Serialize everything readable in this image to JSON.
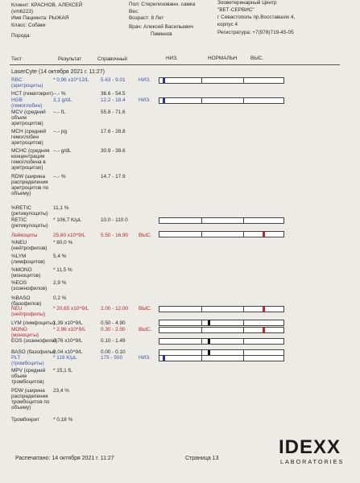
{
  "header": {
    "client": "Клиент: КРАСНОВ, АЛЕКСЕЙ",
    "client_id": "(vm6223)",
    "patient_name": "Имя Пациента: РЫЖАЯ",
    "class": "Класс: Собаки",
    "breed": "Порода:",
    "sex": "Пол: Стерилизованн. самка",
    "weight": "Вес:",
    "age": "Возраст: 8 Лет",
    "doctor_line1": "Врач: Алексей Васильевич",
    "doctor_line2": "Пименов",
    "clinic_line1": "Зооветеринарный Центр",
    "clinic_line2": "\"ВЕТ-СЕРВИС\"",
    "clinic_line3": "г Севастополь пр.Восставших 4,",
    "clinic_line4": "корпус 4",
    "clinic_line5": "Регистратура: +7(978)719-45-05"
  },
  "columns": {
    "test": "Тест",
    "result": "Результат",
    "reference": "Справочный",
    "low": "НИЗ.",
    "normal": "НОРМАЛЬН",
    "high": "ВЫС."
  },
  "section_title": "LaserCyte (14 октября 2021 г. 11:27)",
  "rows": [
    {
      "name": "RBC",
      "sub": "(эритроциты)",
      "result": "* 0,96 x10^12/L",
      "ref": "5.63 - 9.01",
      "flag": "НИЗ.",
      "color": "blue"
    },
    {
      "name": "HCT (гематокрит)",
      "result": "--.- %",
      "ref": "36.6 - 54.5"
    },
    {
      "name": "HGB",
      "sub": "(гемоглобин)",
      "result": "3,1 g/dL",
      "ref": "12.2 - 18.4",
      "flag": "НИЗ.",
      "color": "blue"
    },
    {
      "name": "MCV (средний",
      "sub": "объем",
      "sub2": "эритроцитов)",
      "result": "--.- fL",
      "ref": "55.8 - 71.6"
    },
    {
      "name": "MCH (средний",
      "sub": "гемоглобин",
      "sub2": "эритроцитов)",
      "result": "--.- pg",
      "ref": "17.6 - 28.8"
    },
    {
      "name": "MCHC (средняя",
      "sub": "концентрация",
      "sub2": "гемоглобина в",
      "sub3": "эритроцитах)",
      "result": "--.- g/dL",
      "ref": "30.9 - 38.6"
    },
    {
      "name": "RDW (ширина",
      "sub": "распределения",
      "sub2": "эритроцитов по",
      "sub3": "объему)",
      "result": "--.- %",
      "ref": "14.7 - 17.9"
    },
    {
      "name": "%RETIC",
      "sub": "(ретикулоциты)",
      "result": "11,1 %"
    },
    {
      "name": "RETIC",
      "sub": "(ретикулоциты)",
      "result": "* 106,7 K/μL",
      "ref": "10.0 - 110.0"
    },
    {
      "name": "Лейкоциты",
      "result": "25,80 x10^9/L",
      "ref": "5.50 - 16.90",
      "flag": "ВЫС.",
      "color": "red"
    },
    {
      "name": "%NEU",
      "sub": "(нейтрофилов)",
      "result": "* 80,0 %"
    },
    {
      "name": "%LYM",
      "sub": "(лимфоцитов)",
      "result": "5,4 %"
    },
    {
      "name": "%MONO",
      "sub": "(моноцитов)",
      "result": "* 11,5 %"
    },
    {
      "name": "%EOS",
      "sub": "(эозинофилов)",
      "result": "2,9 %"
    },
    {
      "name": "%BASO",
      "sub": "(базофилов)",
      "result": "0,2 %"
    },
    {
      "name": "NEU",
      "sub": "(нейтрофилы)",
      "result": "* 20,65 x10^9/L",
      "ref": "2.00 - 12.00",
      "flag": "ВЫС.",
      "color": "red"
    },
    {
      "name": "LYM (лимфоциты)",
      "result": "1,39 x10^9/L",
      "ref": "0.50 - 4.90"
    },
    {
      "name": "MONO",
      "sub": "(моноциты)",
      "result": "* 2,96 x10^9/L",
      "ref": "0.30 - 2.00",
      "flag": "ВЫС.",
      "color": "red"
    },
    {
      "name": "EOS (эозинофилы)",
      "result": "0,76 x10^9/L",
      "ref": "0.10 - 1.49"
    },
    {
      "name": "BASO (базофилы)",
      "result": "0,04 x10^9/L",
      "ref": "0.00 - 0.10"
    },
    {
      "name": "PLT",
      "sub": "(тромбоциты)",
      "result": "* 119 K/μL",
      "ref": "175 - 500",
      "flag": "НИЗ.",
      "color": "blue"
    },
    {
      "name": "MPV (средний",
      "sub": "объем",
      "sub2": "тромбоцитов)",
      "result": "* 15,1 fL"
    },
    {
      "name": "PDW (ширина",
      "sub": "распределения",
      "sub2": "тромбоцитов по",
      "sub3": "объему)",
      "result": "23,4 %"
    },
    {
      "name": "Тромбокрит",
      "result": "* 0,18 %"
    }
  ],
  "bars": [
    {
      "level": "low",
      "color": "#1f3a8a"
    },
    {
      "level": "low",
      "color": "#1f3a8a"
    },
    {
      "level": "normal",
      "color": ""
    },
    {
      "level": "high",
      "color": "#c8232a"
    },
    {
      "level": "high",
      "color": "#c8232a"
    },
    {
      "level": "normal",
      "color": "#111111"
    },
    {
      "level": "high",
      "color": "#c8232a"
    },
    {
      "level": "normal",
      "color": "#111111"
    },
    {
      "level": "normal",
      "color": "#111111"
    },
    {
      "level": "low",
      "color": "#1f3a8a"
    }
  ],
  "footer": {
    "printed": "Распечатано: 14 октября 2021 г. 11:27",
    "page": "Страница 13",
    "logo": "IDEXX",
    "logo_sub": "LABORATORIES"
  }
}
